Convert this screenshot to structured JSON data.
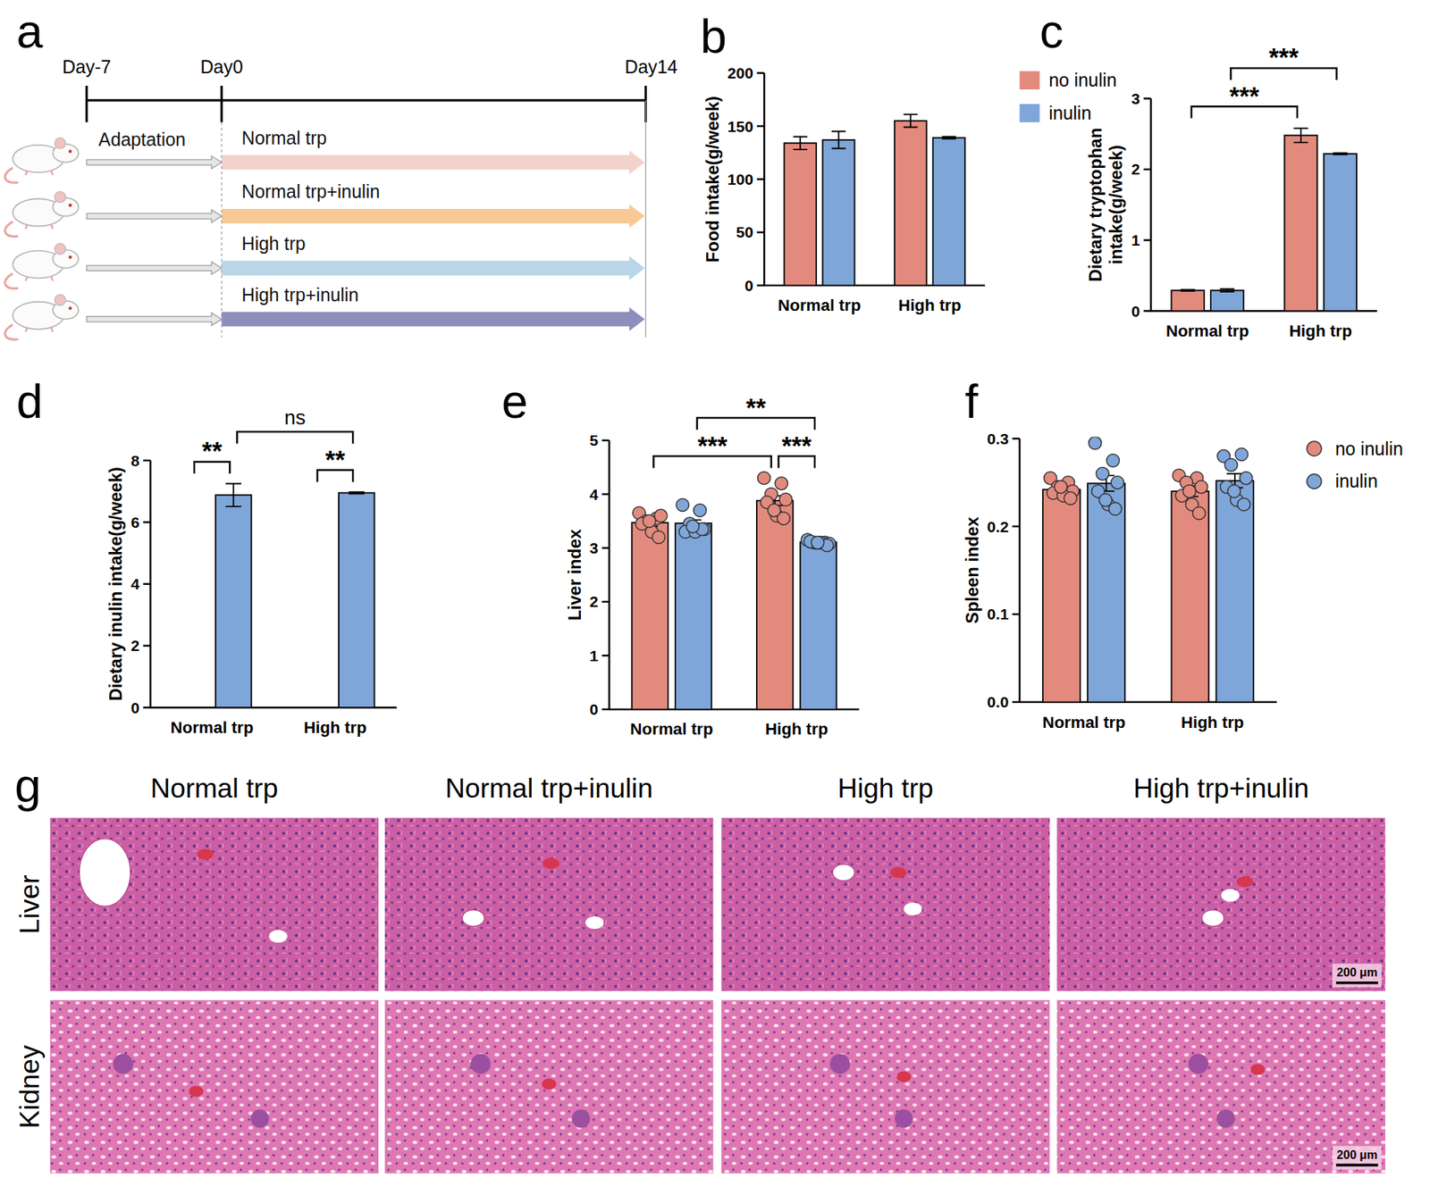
{
  "chart_data": [
    {
      "panel": "b",
      "type": "bar",
      "y_label": "Food intake(g/week)",
      "categories": [
        "Normal trp",
        "High trp"
      ],
      "series": [
        {
          "name": "no inulin",
          "color": "#E38A7E",
          "values": [
            134,
            155
          ],
          "errors": [
            6,
            6
          ]
        },
        {
          "name": "inulin",
          "color": "#7FA6D9",
          "values": [
            137,
            139
          ],
          "errors": [
            8,
            1
          ]
        }
      ],
      "ylim": [
        0,
        200
      ],
      "yticks": [
        0,
        50,
        100,
        150,
        200
      ]
    },
    {
      "panel": "c",
      "type": "bar",
      "y_label": "Dietary tryptophan intake(g/week)",
      "categories": [
        "Normal trp",
        "High trp"
      ],
      "series": [
        {
          "name": "no inulin",
          "color": "#E38A7E",
          "values": [
            0.29,
            2.48
          ],
          "errors": [
            0.01,
            0.1
          ]
        },
        {
          "name": "inulin",
          "color": "#7FA6D9",
          "values": [
            0.29,
            2.22
          ],
          "errors": [
            0.02,
            0.01
          ]
        }
      ],
      "ylim": [
        0,
        3
      ],
      "yticks": [
        0,
        1,
        2,
        3
      ],
      "legend": "top-left",
      "annotations": [
        {
          "text": "***",
          "from": [
            0,
            0
          ],
          "to": [
            1,
            0
          ]
        },
        {
          "text": "***",
          "from": [
            0,
            1
          ],
          "to": [
            1,
            1
          ]
        }
      ]
    },
    {
      "panel": "d",
      "type": "bar",
      "y_label": "Dietary inulin intake(g/week)",
      "categories": [
        "Normal trp",
        "High trp"
      ],
      "series": [
        {
          "name": "no inulin",
          "color": "#E38A7E",
          "values": [
            0,
            0
          ],
          "errors": [
            0,
            0
          ]
        },
        {
          "name": "inulin",
          "color": "#7FA6D9",
          "values": [
            6.88,
            6.95
          ],
          "errors": [
            0.37,
            0.03
          ]
        }
      ],
      "ylim": [
        0,
        8
      ],
      "yticks": [
        0,
        2,
        4,
        6,
        8
      ],
      "annotations": [
        {
          "text": "**",
          "from": [
            0,
            0
          ],
          "to": [
            0,
            1
          ]
        },
        {
          "text": "**",
          "from": [
            1,
            0
          ],
          "to": [
            1,
            1
          ]
        },
        {
          "text": "ns",
          "from": [
            0,
            1
          ],
          "to": [
            1,
            1
          ]
        }
      ]
    },
    {
      "panel": "e",
      "type": "bar",
      "y_label": "Liver index",
      "categories": [
        "Normal trp",
        "High trp"
      ],
      "series": [
        {
          "name": "no inulin",
          "color": "#E38A7E",
          "values": [
            3.47,
            3.88
          ],
          "errors": [
            0.07,
            0.09
          ],
          "points": [
            [
              3.65,
              3.55,
              3.5,
              3.6,
              3.45,
              3.3,
              3.2,
              3.5
            ],
            [
              4.3,
              4.2,
              4.0,
              3.9,
              3.85,
              3.6,
              3.55,
              3.7
            ]
          ]
        },
        {
          "name": "inulin",
          "color": "#7FA6D9",
          "values": [
            3.46,
            3.11
          ],
          "errors": [
            0.06,
            0.02
          ],
          "points": [
            [
              3.8,
              3.7,
              3.45,
              3.35,
              3.3,
              3.3,
              3.35,
              3.4
            ],
            [
              3.15,
              3.1,
              3.1,
              3.08,
              3.12,
              3.1,
              3.05,
              3.1
            ]
          ]
        }
      ],
      "ylim": [
        0,
        5
      ],
      "yticks": [
        0,
        1,
        2,
        3,
        4,
        5
      ],
      "annotations": [
        {
          "text": "***",
          "from": [
            0,
            0
          ],
          "to": [
            1,
            0
          ]
        },
        {
          "text": "***",
          "from": [
            1,
            0
          ],
          "to": [
            1,
            1
          ]
        },
        {
          "text": "**",
          "from": [
            0,
            1
          ],
          "to": [
            1,
            1
          ]
        }
      ]
    },
    {
      "panel": "f",
      "type": "bar",
      "y_label": "Spleen index",
      "categories": [
        "Normal trp",
        "High trp"
      ],
      "series": [
        {
          "name": "no inulin",
          "color": "#E38A7E",
          "values": [
            0.242,
            0.24
          ],
          "errors": [
            0.004,
            0.006
          ],
          "points": [
            [
              0.255,
              0.25,
              0.245,
              0.24,
              0.238,
              0.235,
              0.232,
              0.245
            ],
            [
              0.258,
              0.255,
              0.25,
              0.245,
              0.235,
              0.225,
              0.215,
              0.24
            ]
          ]
        },
        {
          "name": "inulin",
          "color": "#7FA6D9",
          "values": [
            0.249,
            0.252
          ],
          "errors": [
            0.009,
            0.008
          ],
          "points": [
            [
              0.295,
              0.275,
              0.26,
              0.25,
              0.24,
              0.225,
              0.22,
              0.23
            ],
            [
              0.28,
              0.282,
              0.27,
              0.255,
              0.245,
              0.23,
              0.225,
              0.24
            ]
          ]
        }
      ],
      "ylim": [
        0,
        0.3
      ],
      "yticks": [
        {
          "value": 0,
          "label": "0.0"
        },
        0.1,
        0.2,
        0.3
      ],
      "legend": "right"
    }
  ],
  "timeline": {
    "panel": "a",
    "days": [
      "Day-7",
      "Day0",
      "Day14"
    ],
    "phase": "Adaptation",
    "groups": [
      "Normal trp",
      "Normal trp+inulin",
      "High trp",
      "High trp+inulin"
    ]
  },
  "histology": {
    "panel": "g",
    "columns": [
      "Normal trp",
      "Normal trp+inulin",
      "High trp",
      "High trp+inulin"
    ],
    "rows": [
      "Liver",
      "Kidney"
    ],
    "scale_bar": "200 μm"
  }
}
